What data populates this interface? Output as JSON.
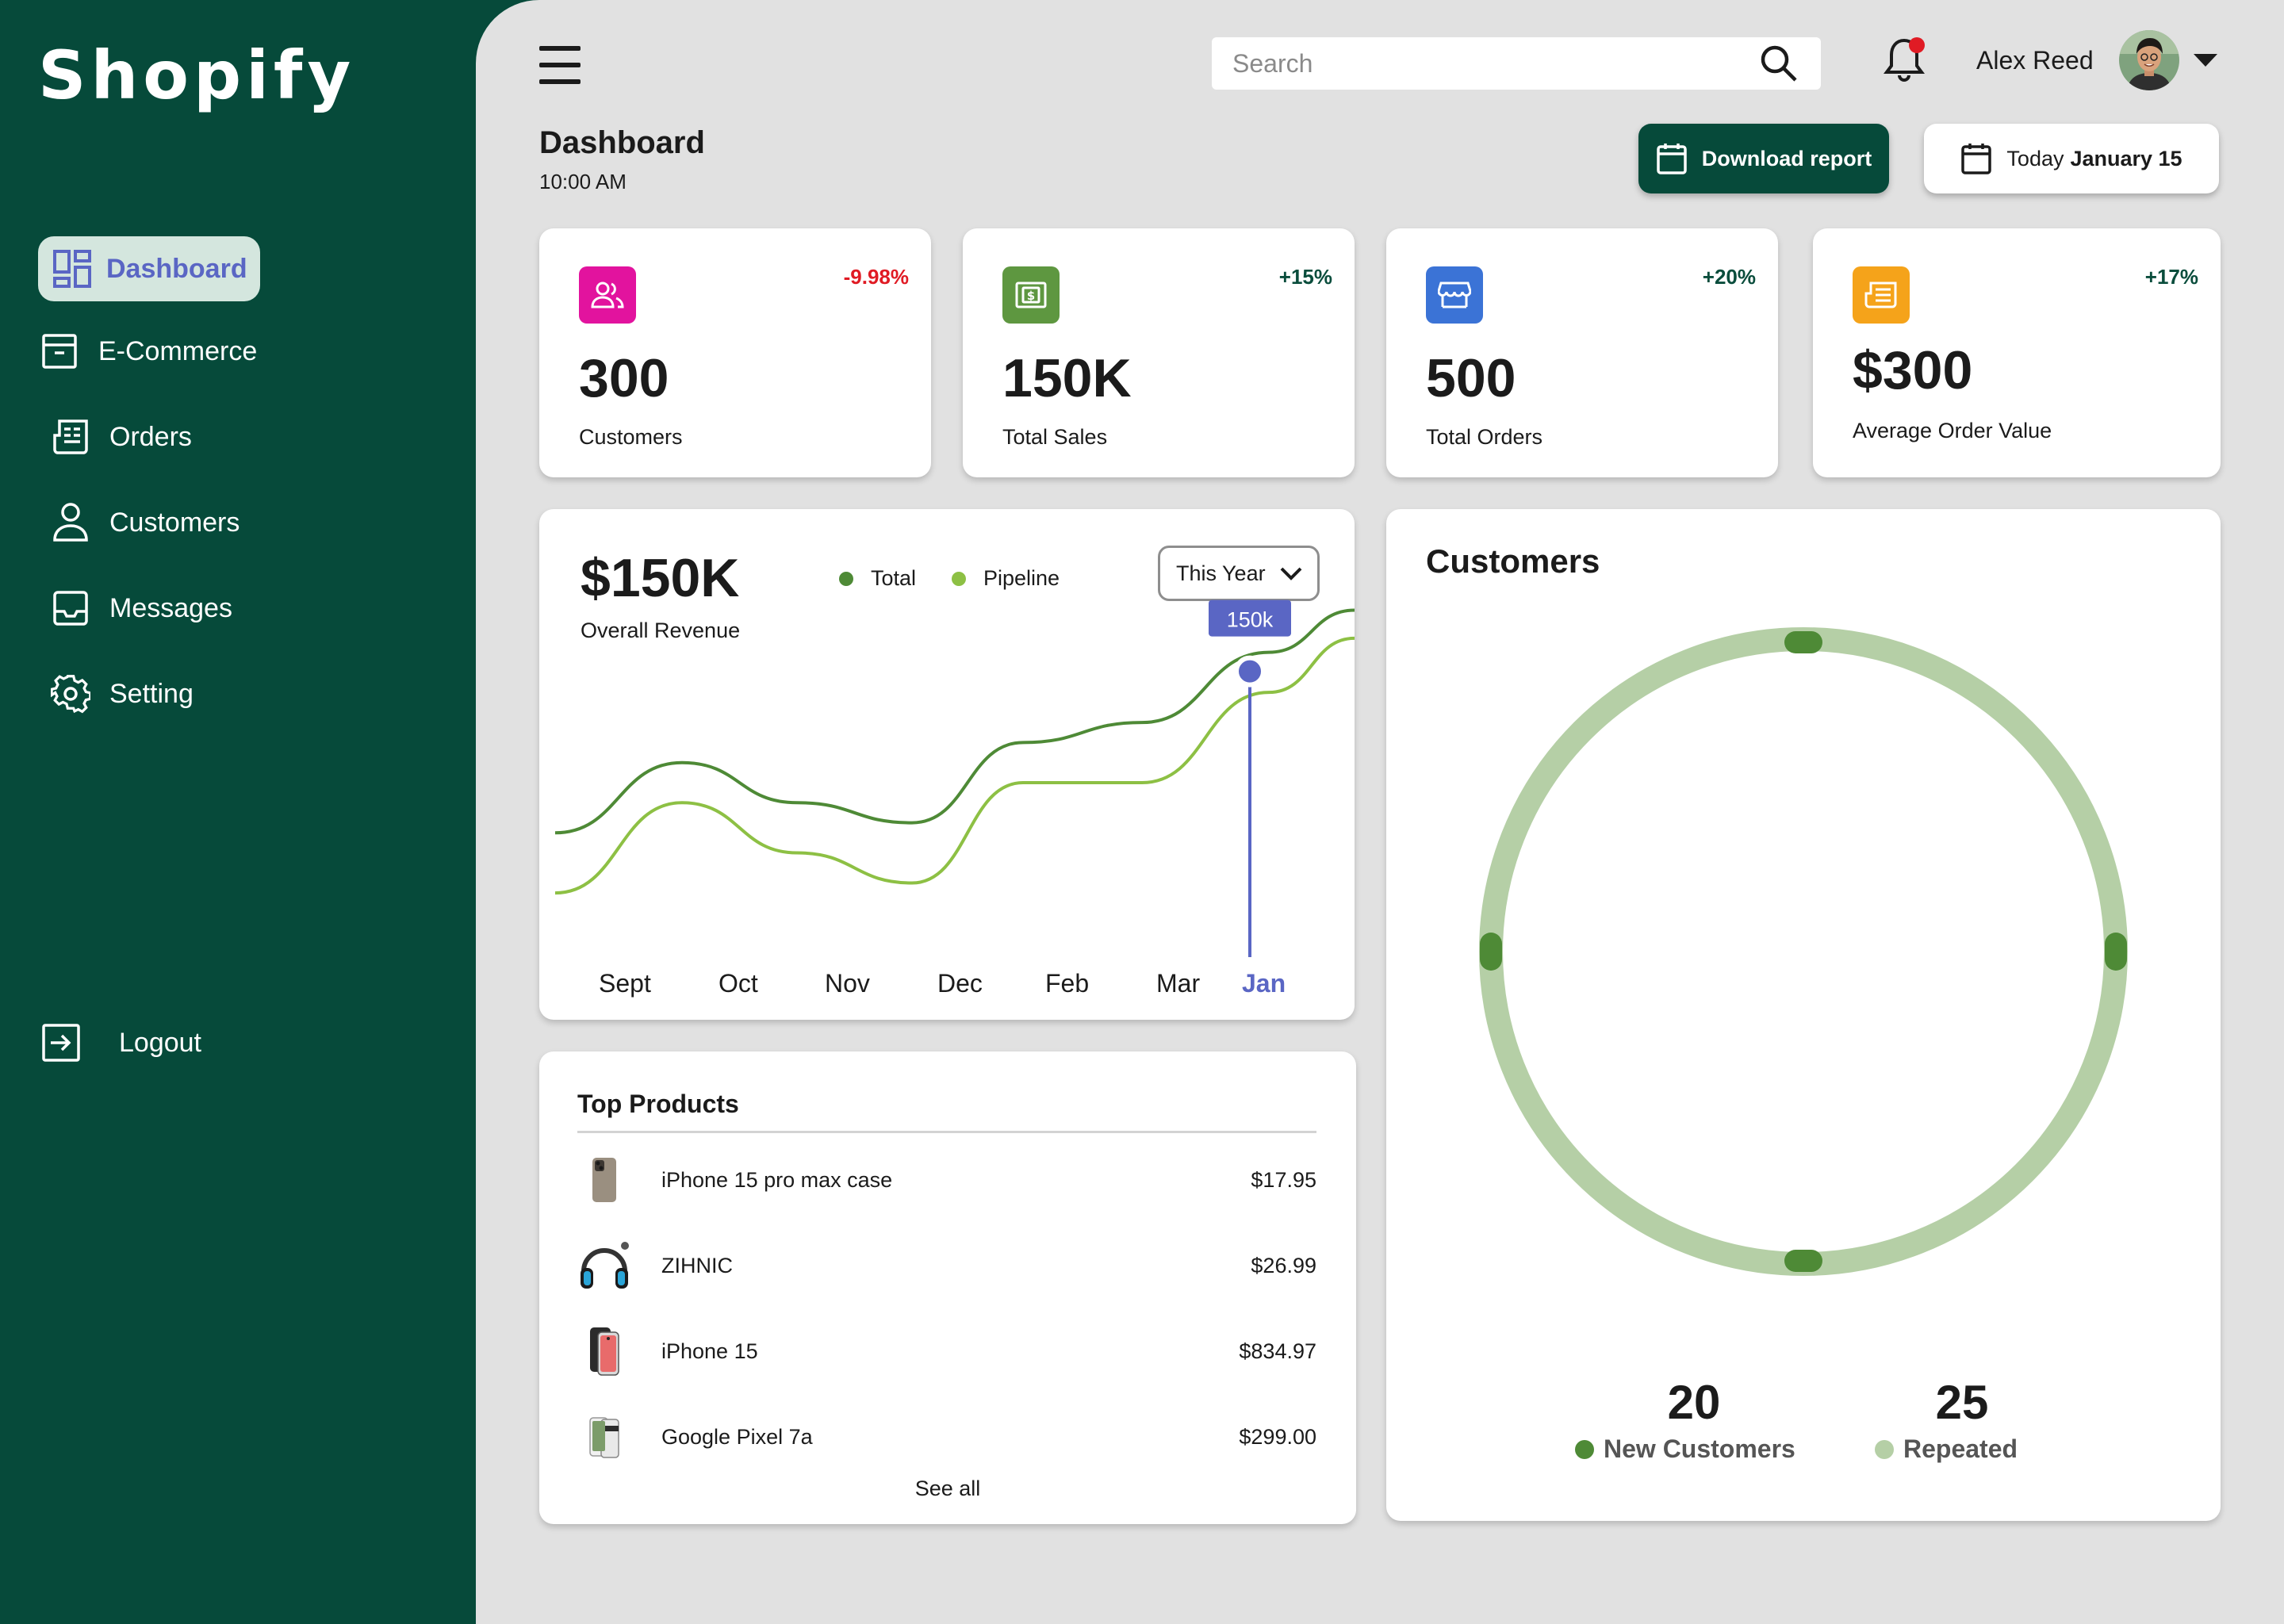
{
  "app": {
    "logo": "Shopify"
  },
  "sidebar": {
    "items": [
      {
        "label": "Dashboard",
        "icon": "dashboard-icon"
      },
      {
        "label": "E-Commerce",
        "icon": "archive-icon"
      },
      {
        "label": "Orders",
        "icon": "orders-icon"
      },
      {
        "label": "Customers",
        "icon": "user-icon"
      },
      {
        "label": "Messages",
        "icon": "inbox-icon"
      },
      {
        "label": "Setting",
        "icon": "gear-icon"
      }
    ],
    "logout": "Logout"
  },
  "header": {
    "search_placeholder": "Search",
    "user_name": "Alex Reed",
    "notification_dot_color": "#e01b24"
  },
  "page": {
    "title": "Dashboard",
    "time": "10:00 AM",
    "download_label": "Download report",
    "date_prefix": "Today",
    "date_value": "January 15"
  },
  "stats": [
    {
      "value": "300",
      "label": "Customers",
      "change": "-9.98%",
      "change_color": "#e01b24",
      "badge_color": "#e2139e",
      "icon": "users-icon"
    },
    {
      "value": "150K",
      "label": "Total Sales",
      "change": "+15%",
      "change_color": "#0a4d3c",
      "badge_color": "#5e9740",
      "icon": "cash-icon"
    },
    {
      "value": "500",
      "label": "Total Orders",
      "change": "+20%",
      "change_color": "#0a4d3c",
      "badge_color": "#3b73d6",
      "icon": "store-icon"
    },
    {
      "value": "$300",
      "label": "Average Order Value",
      "change": "+17%",
      "change_color": "#0a4d3c",
      "badge_color": "#f5a31a",
      "icon": "receipt-icon"
    }
  ],
  "revenue": {
    "value": "$150K",
    "label": "Overall Revenue",
    "period": "This Year",
    "legend": [
      {
        "name": "Total",
        "color": "#4e8a36"
      },
      {
        "name": "Pipeline",
        "color": "#8dc044"
      }
    ],
    "tooltip": "150k",
    "months": [
      "Sept",
      "Oct",
      "Nov",
      "Dec",
      "Feb",
      "Mar",
      "Jan"
    ],
    "current_month": "Jan"
  },
  "chart_data": {
    "type": "line",
    "categories": [
      "Sept",
      "Oct",
      "Nov",
      "Dec",
      "Feb",
      "Mar",
      "Jan"
    ],
    "series": [
      {
        "name": "Total",
        "values": [
          60,
          95,
          75,
          65,
          105,
          115,
          150
        ]
      },
      {
        "name": "Pipeline",
        "values": [
          30,
          75,
          50,
          35,
          85,
          85,
          130
        ]
      }
    ],
    "highlight": {
      "category": "Jan",
      "label": "150k"
    },
    "legend": "top",
    "grid": false
  },
  "top_products": {
    "title": "Top Products",
    "items": [
      {
        "name": "iPhone 15 pro max case",
        "price": "$17.95",
        "icon": "phone-case-icon"
      },
      {
        "name": "ZIHNIC",
        "price": "$26.99",
        "icon": "headphones-icon"
      },
      {
        "name": "iPhone 15",
        "price": "$834.97",
        "icon": "iphone-icon"
      },
      {
        "name": "Google Pixel 7a",
        "price": "$299.00",
        "icon": "pixel-phone-icon"
      }
    ],
    "see_all": "See all"
  },
  "customers_card": {
    "title": "Customers",
    "new_value": "20",
    "new_label": "New Customers",
    "new_color": "#4e8a36",
    "repeated_value": "25",
    "repeated_label": "Repeated",
    "repeated_color": "#b5cfa6"
  }
}
